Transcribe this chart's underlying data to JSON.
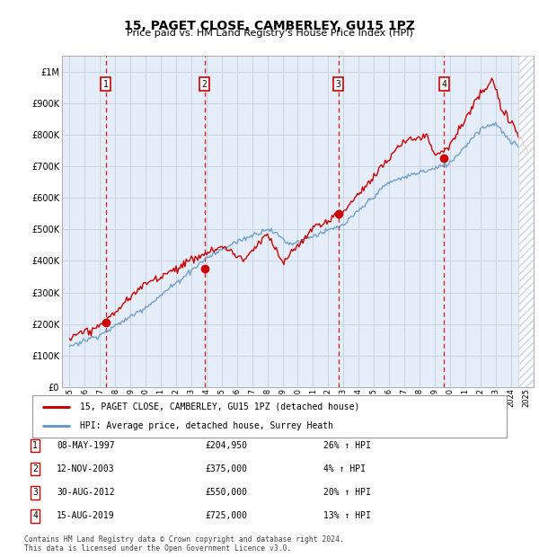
{
  "title": "15, PAGET CLOSE, CAMBERLEY, GU15 1PZ",
  "subtitle": "Price paid vs. HM Land Registry's House Price Index (HPI)",
  "footer": "Contains HM Land Registry data © Crown copyright and database right 2024.\nThis data is licensed under the Open Government Licence v3.0.",
  "legend_line1": "15, PAGET CLOSE, CAMBERLEY, GU15 1PZ (detached house)",
  "legend_line2": "HPI: Average price, detached house, Surrey Heath",
  "sales": [
    {
      "num": 1,
      "date_label": "08-MAY-1997",
      "price_label": "£204,950",
      "hpi_label": "26% ↑ HPI",
      "year": 1997.37,
      "price": 204950
    },
    {
      "num": 2,
      "date_label": "12-NOV-2003",
      "price_label": "£375,000",
      "hpi_label": "4% ↑ HPI",
      "year": 2003.87,
      "price": 375000
    },
    {
      "num": 3,
      "date_label": "30-AUG-2012",
      "price_label": "£550,000",
      "hpi_label": "20% ↑ HPI",
      "year": 2012.66,
      "price": 550000
    },
    {
      "num": 4,
      "date_label": "15-AUG-2019",
      "price_label": "£725,000",
      "hpi_label": "13% ↑ HPI",
      "year": 2019.62,
      "price": 725000
    }
  ],
  "xlim": [
    1994.5,
    2025.5
  ],
  "ylim": [
    0,
    1050000
  ],
  "yticks": [
    0,
    100000,
    200000,
    300000,
    400000,
    500000,
    600000,
    700000,
    800000,
    900000,
    1000000
  ],
  "ytick_labels": [
    "£0",
    "£100K",
    "£200K",
    "£300K",
    "£400K",
    "£500K",
    "£600K",
    "£700K",
    "£800K",
    "£900K",
    "£1M"
  ],
  "xticks": [
    1995,
    1996,
    1997,
    1998,
    1999,
    2000,
    2001,
    2002,
    2003,
    2004,
    2005,
    2006,
    2007,
    2008,
    2009,
    2010,
    2011,
    2012,
    2013,
    2014,
    2015,
    2016,
    2017,
    2018,
    2019,
    2020,
    2021,
    2022,
    2023,
    2024,
    2025
  ],
  "hpi_bg_color": "#dce8f5",
  "price_color": "#cc0000",
  "dashed_color": "#dd0000",
  "grid_color": "#c8d4e4",
  "bg_color": "#e4edf8",
  "sale_box_color": "#cc0000",
  "hpi_line_color": "#6699cc",
  "hatch_color": "#cccccc"
}
